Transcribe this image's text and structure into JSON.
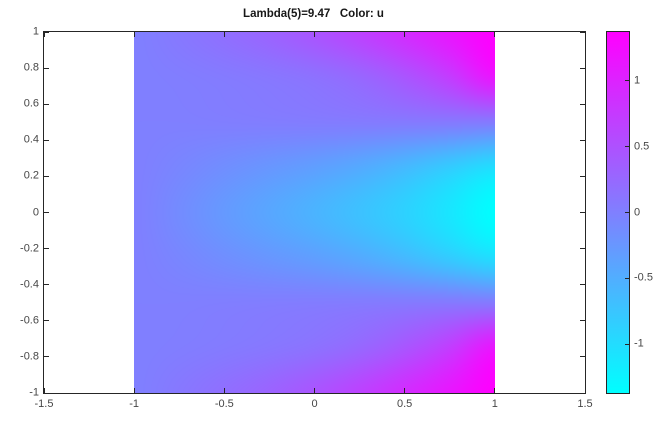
{
  "title": "Lambda(5)=9.47   Color: u",
  "axes": {
    "xticks": [
      -1.5,
      -1,
      -0.5,
      0,
      0.5,
      1,
      1.5
    ],
    "yticks": [
      1,
      0.8,
      0.6,
      0.4,
      0.2,
      0,
      -0.2,
      -0.4,
      -0.6,
      -0.8,
      -1
    ]
  },
  "colorbar": {
    "tick_values": [
      1,
      0.5,
      0,
      -0.5,
      -1
    ],
    "vmin": -1.372,
    "vmax": 1.372,
    "color_top": "#ff00ff",
    "color_bottom": "#00ffff"
  },
  "chart_data": {
    "type": "heatmap",
    "title": "Lambda(5)=9.47   Color: u",
    "xlabel": "",
    "ylabel": "",
    "xlim": [
      -1.5,
      1.5
    ],
    "ylim": [
      -1,
      1
    ],
    "data_extent": {
      "x": [
        -1,
        1
      ],
      "y": [
        -1,
        1
      ]
    },
    "xticks": [
      -1.5,
      -1,
      -0.5,
      0,
      0.5,
      1,
      1.5
    ],
    "yticks": [
      1,
      0.8,
      0.6,
      0.4,
      0.2,
      0,
      -0.2,
      -0.4,
      -0.6,
      -0.8,
      -1
    ],
    "colormap": "cool",
    "clim": [
      -1.372,
      1.372
    ],
    "colorbar_ticks": [
      1,
      0.5,
      0,
      -0.5,
      -1
    ],
    "grid_x": [
      -1,
      -0.75,
      -0.5,
      -0.25,
      0,
      0.25,
      0.5,
      0.75,
      1
    ],
    "grid_y": [
      1,
      0.75,
      0.5,
      0.25,
      0,
      -0.25,
      -0.5,
      -0.75,
      -1
    ],
    "values": [
      [
        0.0,
        0.08,
        0.18,
        0.3,
        0.46,
        0.66,
        0.89,
        1.13,
        1.37
      ],
      [
        0.0,
        0.02,
        0.05,
        0.09,
        0.15,
        0.26,
        0.45,
        0.72,
        1.13
      ],
      [
        0.0,
        0.0,
        0.01,
        0.02,
        0.03,
        0.04,
        0.05,
        0.06,
        0.05
      ],
      [
        0.0,
        -0.07,
        -0.16,
        -0.25,
        -0.34,
        -0.46,
        -0.62,
        -0.82,
        -1.02
      ],
      [
        0.0,
        -0.13,
        -0.28,
        -0.42,
        -0.56,
        -0.71,
        -0.88,
        -1.1,
        -1.36
      ],
      [
        0.0,
        -0.07,
        -0.16,
        -0.25,
        -0.34,
        -0.46,
        -0.62,
        -0.82,
        -1.02
      ],
      [
        0.0,
        0.0,
        0.01,
        0.02,
        0.03,
        0.04,
        0.05,
        0.06,
        0.05
      ],
      [
        0.0,
        0.02,
        0.05,
        0.09,
        0.15,
        0.26,
        0.45,
        0.72,
        1.13
      ],
      [
        0.0,
        0.08,
        0.18,
        0.3,
        0.46,
        0.66,
        0.89,
        1.13,
        1.37
      ]
    ]
  }
}
